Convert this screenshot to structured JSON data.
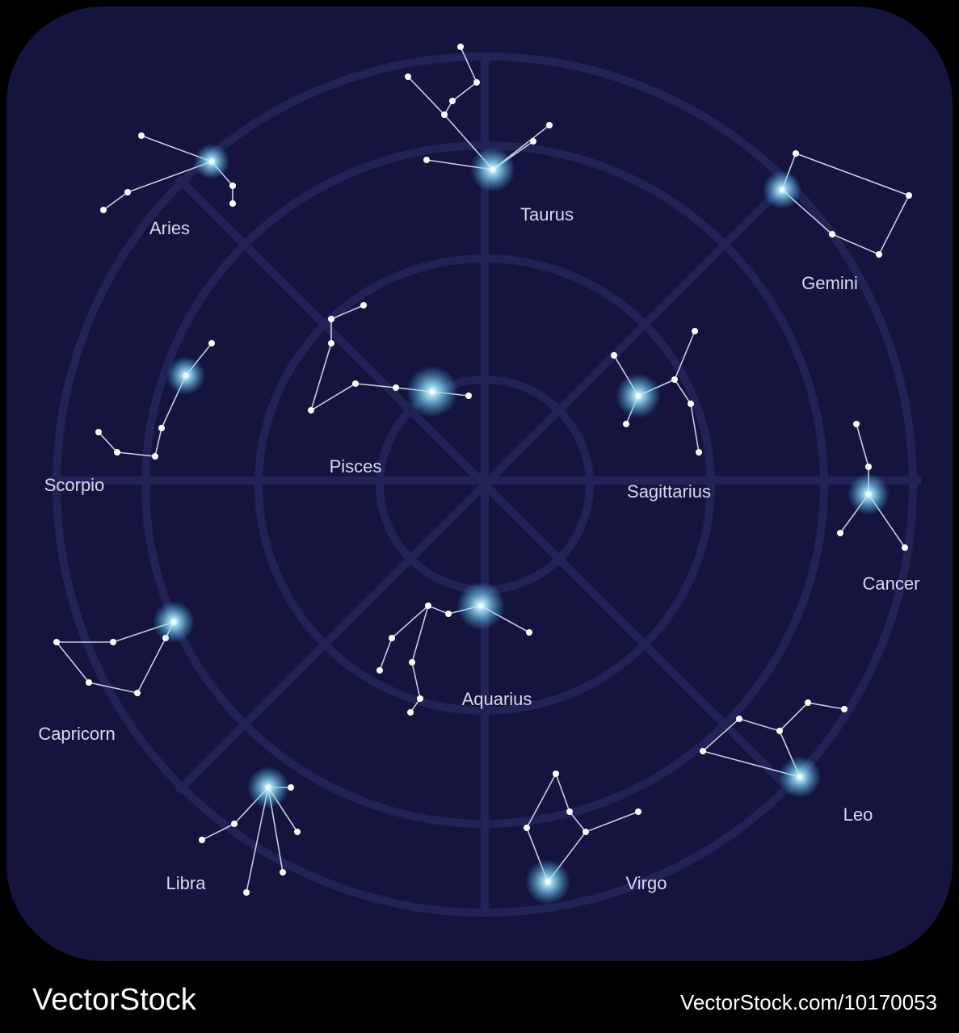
{
  "constellations": [
    {
      "label": "Aries"
    },
    {
      "label": "Taurus"
    },
    {
      "label": "Gemini"
    },
    {
      "label": "Scorpio"
    },
    {
      "label": "Pisces"
    },
    {
      "label": "Sagittarius"
    },
    {
      "label": "Cancer"
    },
    {
      "label": "Capricorn"
    },
    {
      "label": "Aquarius"
    },
    {
      "label": "Leo"
    },
    {
      "label": "Libra"
    },
    {
      "label": "Virgo"
    }
  ],
  "watermark": {
    "brand": "VectorStock",
    "url": "VectorStock.com/10170053"
  }
}
